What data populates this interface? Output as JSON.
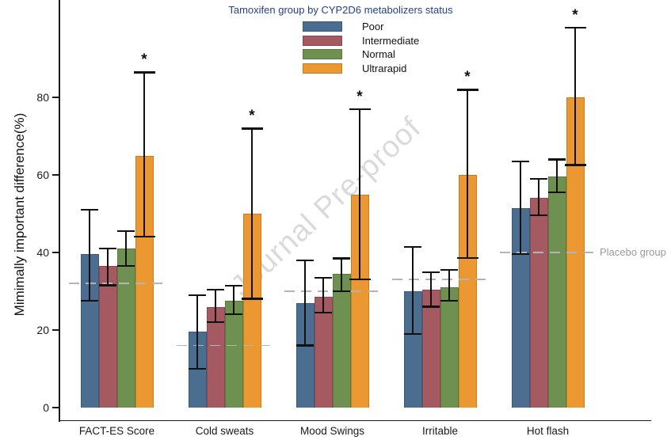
{
  "watermark": {
    "text": "Journal Pre-proof"
  },
  "legend": {
    "title": "Tamoxifen group by CYP2D6 metabolizers status",
    "items": [
      "Poor",
      "Intermediate",
      "Normal",
      "Ultrarapid"
    ]
  },
  "placebo": {
    "label": "Placebo group"
  },
  "chart_data": {
    "type": "bar",
    "title": "",
    "ylabel": "Mimimally important difference(%)",
    "xlabel": "",
    "yticks": [
      0,
      20,
      40,
      60,
      80
    ],
    "ylim": [
      0,
      105
    ],
    "grid": false,
    "legend_position": "top-center",
    "significance_marker": "*",
    "categories": [
      "FACT-ES Score",
      "Cold sweats",
      "Mood Swings",
      "Irritable",
      "Hot flash"
    ],
    "series": [
      {
        "name": "Poor",
        "color": "#4b6d8f",
        "border": "#3a5a7b",
        "values": [
          39.5,
          19.5,
          27,
          30,
          51.5
        ],
        "err_low": [
          27.5,
          10,
          16,
          19,
          39.5
        ],
        "err_high": [
          51,
          29,
          38,
          41.5,
          63.5
        ]
      },
      {
        "name": "Intermediate",
        "color": "#a45a60",
        "border": "#8a474e",
        "values": [
          36.5,
          26,
          28.5,
          30.5,
          54
        ],
        "err_low": [
          31.5,
          22,
          24.5,
          26,
          49.5
        ],
        "err_high": [
          41,
          30.5,
          33.5,
          35,
          59
        ]
      },
      {
        "name": "Normal",
        "color": "#6e9050",
        "border": "#57793c",
        "values": [
          41,
          27.5,
          34.5,
          31,
          59.5
        ],
        "err_low": [
          36.5,
          24,
          30,
          27.5,
          55.5
        ],
        "err_high": [
          45.5,
          31.5,
          38.5,
          35.5,
          64
        ]
      },
      {
        "name": "Ultrarapid",
        "color": "#eb9732",
        "border": "#c97c1c",
        "values": [
          65,
          50,
          55,
          60,
          80
        ],
        "err_low": [
          44,
          28,
          33,
          38.5,
          62.5
        ],
        "err_high": [
          86.5,
          72,
          77,
          82,
          98
        ],
        "significant": [
          true,
          true,
          true,
          true,
          true
        ]
      }
    ],
    "placebo_line_values": [
      32,
      16,
      30,
      33,
      40
    ]
  }
}
